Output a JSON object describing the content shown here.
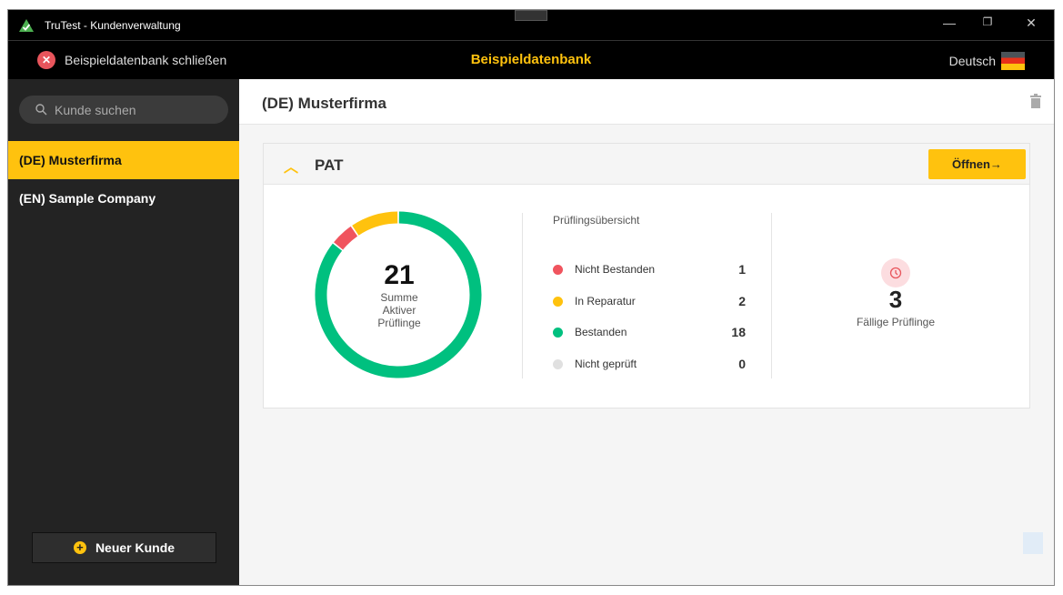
{
  "window": {
    "title": "TruTest - Kundenverwaltung",
    "minimize": "—",
    "maximize": "❐",
    "close": "✕"
  },
  "topbar": {
    "close_db_label": "Beispieldatenbank schließen",
    "db_name": "Beispieldatenbank",
    "language": "Deutsch"
  },
  "sidebar": {
    "search_placeholder": "Kunde suchen",
    "items": [
      {
        "label": "(DE) Musterfirma",
        "selected": true
      },
      {
        "label": "(EN) Sample Company",
        "selected": false
      }
    ],
    "new_customer_label": "Neuer Kunde"
  },
  "main": {
    "title": "(DE) Musterfirma",
    "card": {
      "title": "PAT",
      "open_label": "Öffnen→",
      "total": "21",
      "total_label": "Summe Aktiver Prüflinge",
      "overview_title": "Prüflingsübersicht",
      "legend": [
        {
          "label": "Nicht Bestanden",
          "value": "1",
          "color": "#f0545e"
        },
        {
          "label": "In Reparatur",
          "value": "2",
          "color": "#ffc20e"
        },
        {
          "label": "Bestanden",
          "value": "18",
          "color": "#00c07f"
        },
        {
          "label": "Nicht geprüft",
          "value": "0",
          "color": "#e0e0e0"
        }
      ],
      "due_count": "3",
      "due_label": "Fällige Prüflinge"
    }
  },
  "colors": {
    "accent": "#ffc20e",
    "passed": "#00c07f",
    "failed": "#f0545e",
    "repair": "#ffc20e"
  }
}
